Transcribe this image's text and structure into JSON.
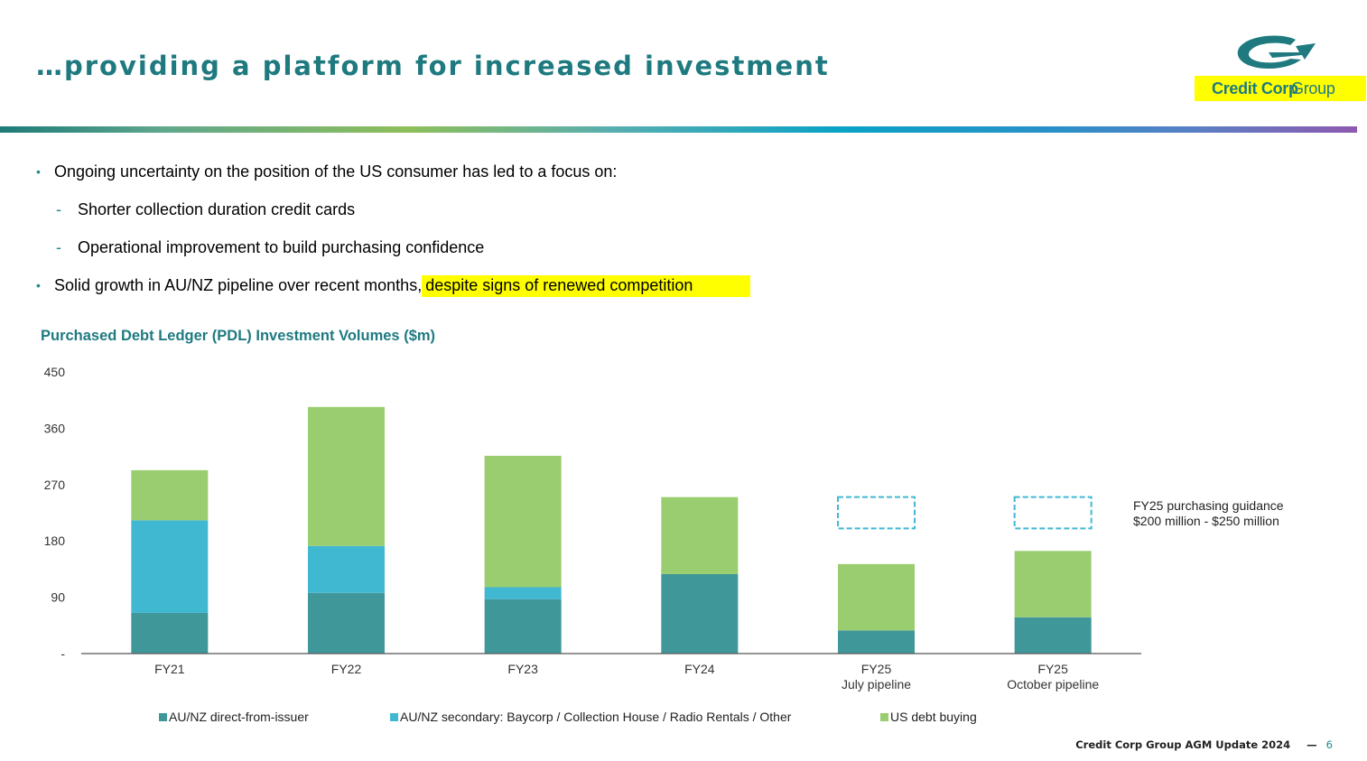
{
  "header": {
    "title": "…providing a platform for increased investment",
    "logo_text_bold": "Credit Corp",
    "logo_text_light": "Group"
  },
  "bullets": [
    {
      "level": 1,
      "text": "Ongoing uncertainty on the position of the US consumer has led to a focus on:"
    },
    {
      "level": 2,
      "text": "Shorter collection duration credit cards"
    },
    {
      "level": 2,
      "text": "Operational improvement to build purchasing confidence"
    },
    {
      "level": 1,
      "text": "Solid growth in AU/NZ pipeline over recent months,",
      "highlight": "despite signs of renewed competition"
    }
  ],
  "annotation": {
    "line1": "FY25 purchasing guidance",
    "line2": "$200 million - $250 million"
  },
  "footer": {
    "text": "Credit Corp Group AGM Update 2024",
    "separator": "—",
    "page": "6"
  },
  "colors": {
    "brand": "#1f7a80",
    "au_direct": "#40979a",
    "au_secondary": "#41b8d2",
    "us": "#9acd70",
    "guidance_box": "#41b8d2",
    "highlight": "#ffff00"
  },
  "chart_data": {
    "type": "bar",
    "stacked": true,
    "title": "Purchased Debt Ledger (PDL) Investment Volumes ($m)",
    "categories": [
      [
        "FY21"
      ],
      [
        "FY22"
      ],
      [
        "FY23"
      ],
      [
        "FY24"
      ],
      [
        "FY25",
        "July pipeline"
      ],
      [
        "FY25",
        "October pipeline"
      ]
    ],
    "series": [
      {
        "name": "AU/NZ direct-from-issuer",
        "values": [
          65,
          97,
          87,
          127,
          37,
          58
        ]
      },
      {
        "name": "AU/NZ secondary: Baycorp / Collection House / Radio Rentals / Other",
        "values": [
          148,
          75,
          19,
          0,
          0,
          0
        ]
      },
      {
        "name": "US debt buying",
        "values": [
          80,
          222,
          210,
          123,
          106,
          106
        ]
      }
    ],
    "guidance_range": [
      200,
      250
    ],
    "guidance_categories": [
      4,
      5
    ],
    "yticks": [
      "-",
      "90",
      "180",
      "270",
      "360",
      "450"
    ],
    "ylim": [
      0,
      450
    ],
    "legend_position": "bottom",
    "grid": false
  }
}
